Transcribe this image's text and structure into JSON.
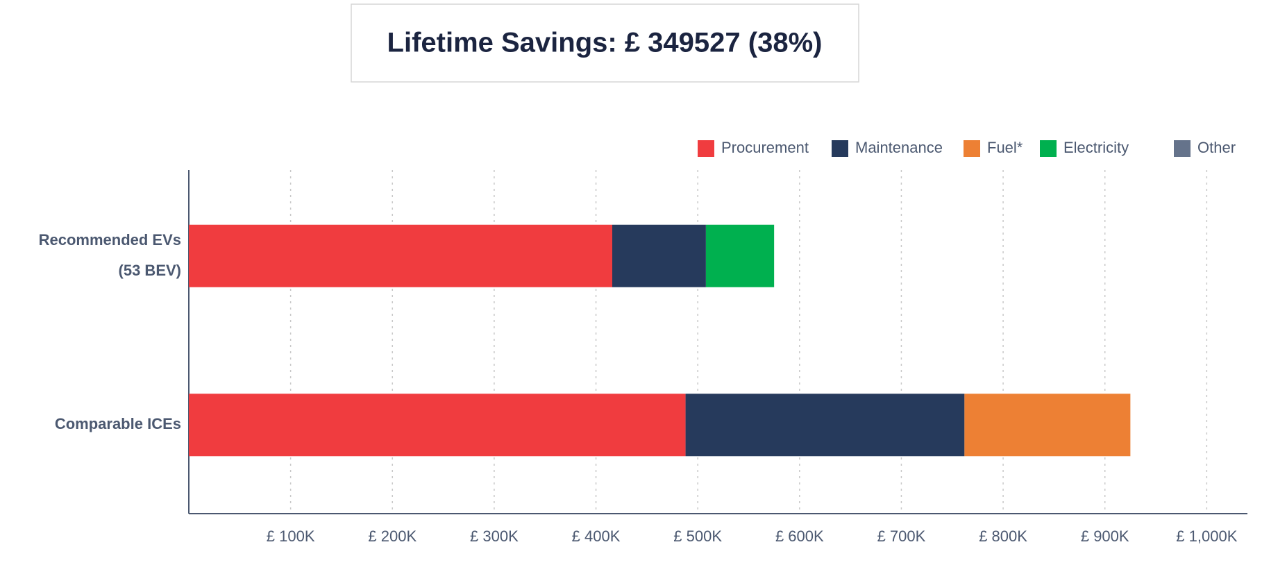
{
  "chart_data": {
    "type": "stacked-bar-horizontal",
    "title": "Lifetime Savings: £ 349527 (38%)",
    "categories": [
      "Recommended EVs (53 BEV)",
      "Comparable ICEs"
    ],
    "series": [
      {
        "name": "Procurement",
        "color": "#f03c3f",
        "values": [
          416,
          488
        ]
      },
      {
        "name": "Maintenance",
        "color": "#263a5c",
        "values": [
          92,
          274
        ]
      },
      {
        "name": "Fuel*",
        "color": "#ed8034",
        "values": [
          null,
          163
        ]
      },
      {
        "name": "Electricity",
        "color": "#00b04f",
        "values": [
          67,
          null
        ]
      },
      {
        "name": "Other",
        "color": "#65738b",
        "values": [
          null,
          null
        ]
      }
    ],
    "xlim": [
      0,
      1040
    ],
    "xticks": [
      {
        "value": 100,
        "label": "£ 100K"
      },
      {
        "value": 200,
        "label": "£ 200K"
      },
      {
        "value": 300,
        "label": "£ 300K"
      },
      {
        "value": 400,
        "label": "£ 400K"
      },
      {
        "value": 500,
        "label": "£ 500K"
      },
      {
        "value": 600,
        "label": "£ 600K"
      },
      {
        "value": 700,
        "label": "£ 700K"
      },
      {
        "value": 800,
        "label": "£ 800K"
      },
      {
        "value": 900,
        "label": "£ 900K"
      },
      {
        "value": 1000,
        "label": "£ 1,000K"
      }
    ],
    "grid": true,
    "legend": "top-right"
  }
}
